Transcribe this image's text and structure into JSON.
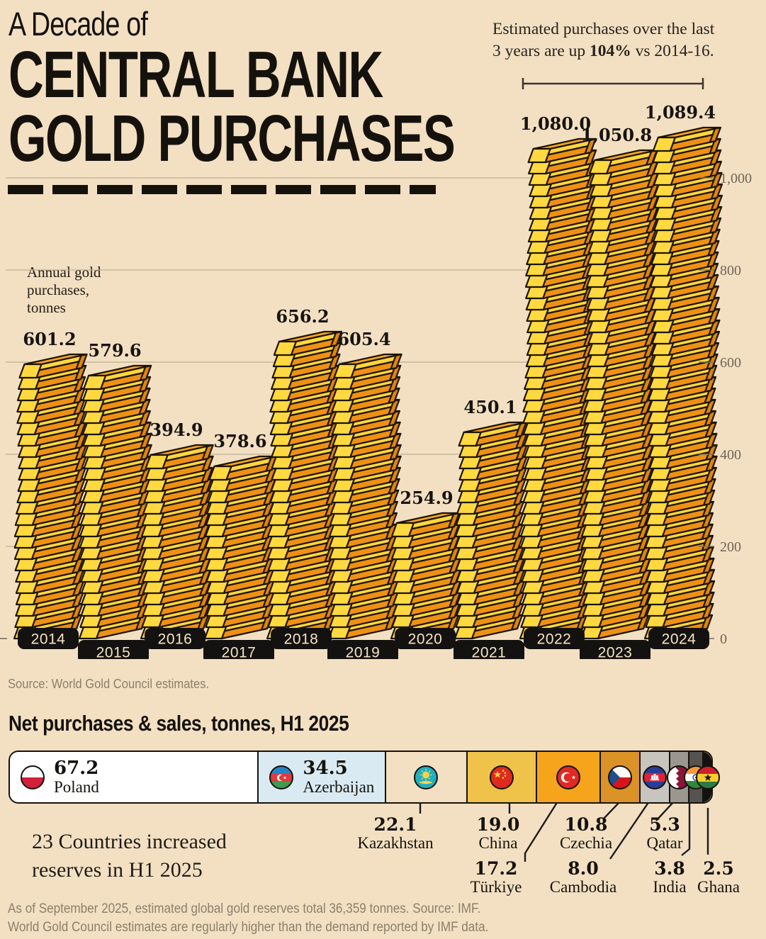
{
  "page": {
    "background": "#F3E0C2"
  },
  "header": {
    "title_line1": "A Decade of",
    "title_line2": "CENTRAL BANK",
    "title_line3": "GOLD PURCHASES",
    "annotation_line1": "Estimated purchases over the last",
    "annotation_line2_pre": "3 years are up ",
    "annotation_line2_bold": "104%",
    "annotation_line2_post": " vs 2014-16."
  },
  "chart_data": {
    "type": "bar",
    "title": "Annual gold purchases, tonnes",
    "categories": [
      "2014",
      "2015",
      "2016",
      "2017",
      "2018",
      "2019",
      "2020",
      "2021",
      "2022",
      "2023",
      "2024"
    ],
    "values": [
      601.2,
      579.6,
      394.9,
      378.6,
      656.2,
      605.4,
      254.9,
      450.1,
      1080.0,
      1050.8,
      1089.4
    ],
    "value_labels": [
      "601.2",
      "579.6",
      "394.9",
      "378.6",
      "656.2",
      "605.4",
      "254.9",
      "450.1",
      "1,080.0",
      "1,050.8",
      "1,089.4"
    ],
    "ylim": [
      0,
      1100
    ],
    "yticks": [
      0,
      200,
      400,
      600,
      800,
      1000
    ],
    "ytick_labels": [
      "0",
      "200",
      "400",
      "600",
      "800",
      "1,000"
    ],
    "tonnes_per_ingot": 25,
    "grid": true,
    "legend": "none",
    "source": "Source: World Gold Council estimates.",
    "colors": {
      "ingot_top": "#F7A61E",
      "ingot_front": "#EE9013",
      "ingot_bevel": "#FFD73C",
      "ingot_cap": "#FFD93F",
      "ingot_end": "#DE8607",
      "outline": "#1D1408",
      "gridline": "#BFAE93",
      "axis_text": "#6F6558",
      "chip_bg": "#141210",
      "chip_text": "#F4E3C4"
    }
  },
  "bottom": {
    "heading": "Net purchases & sales, tonnes, H1 2025",
    "note_line1": "23 Countries increased",
    "note_line2": "reserves in H1 2025",
    "countries": [
      {
        "name": "Poland",
        "value": "67.2",
        "tonnes": 67.2,
        "color": "#FFFFFF",
        "flag": "poland"
      },
      {
        "name": "Azerbaijan",
        "value": "34.5",
        "tonnes": 34.5,
        "color": "#D9EAF2",
        "flag": "azerbaijan"
      },
      {
        "name": "Kazakhstan",
        "value": "22.1",
        "tonnes": 22.1,
        "color": "#F3E0C2",
        "flag": "kazakhstan"
      },
      {
        "name": "China",
        "value": "19.0",
        "tonnes": 19.0,
        "color": "#EFC24A",
        "flag": "china"
      },
      {
        "name": "Türkiye",
        "value": "17.2",
        "tonnes": 17.2,
        "color": "#F5A41C",
        "flag": "turkiye"
      },
      {
        "name": "Czechia",
        "value": "10.8",
        "tonnes": 10.8,
        "color": "#DB9226",
        "flag": "czechia"
      },
      {
        "name": "Cambodia",
        "value": "8.0",
        "tonnes": 8.0,
        "color": "#C8C5BF",
        "flag": "cambodia"
      },
      {
        "name": "Qatar",
        "value": "5.3",
        "tonnes": 5.3,
        "color": "#9B978F",
        "flag": "qatar"
      },
      {
        "name": "India",
        "value": "3.8",
        "tonnes": 3.8,
        "color": "#57534E",
        "flag": "india"
      },
      {
        "name": "Ghana",
        "value": "2.5",
        "tonnes": 2.5,
        "color": "#141210",
        "flag": "ghana"
      }
    ],
    "footnote_line1": "As of September 2025, estimated global gold reserves total 36,359 tonnes. Source: IMF.",
    "footnote_line2": "World Gold Council estimates are regularly higher than the demand reported by IMF data."
  }
}
